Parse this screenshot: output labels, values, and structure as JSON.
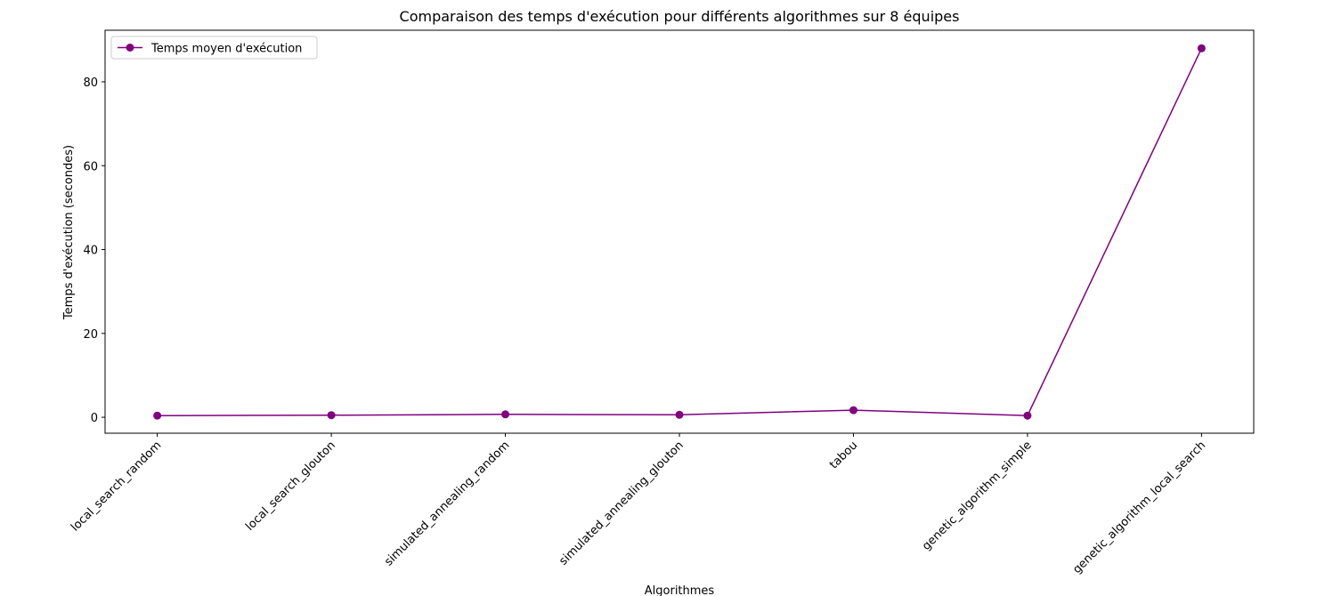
{
  "chart_data": {
    "type": "line",
    "title": "Comparaison des temps d'exécution pour différents algorithmes sur 8 équipes",
    "x_label": "Algorithmes",
    "y_label": "Temps d'exécution (secondes)",
    "categories": [
      "local_search_random",
      "local_search_glouton",
      "simulated_annealing_random",
      "simulated_annealing_glouton",
      "tabou",
      "genetic_algorithm_simple",
      "genetic_algorithm_local_search"
    ],
    "series": [
      {
        "name": "Temps moyen d'exécution",
        "color": "#800080",
        "values": [
          0.4,
          0.5,
          0.7,
          0.6,
          1.7,
          0.4,
          88.0
        ]
      }
    ],
    "ylim": [
      -3.8,
      92.3
    ],
    "yticks": [
      0,
      20,
      40,
      60,
      80
    ],
    "legend": "upper left",
    "grid": false
  }
}
